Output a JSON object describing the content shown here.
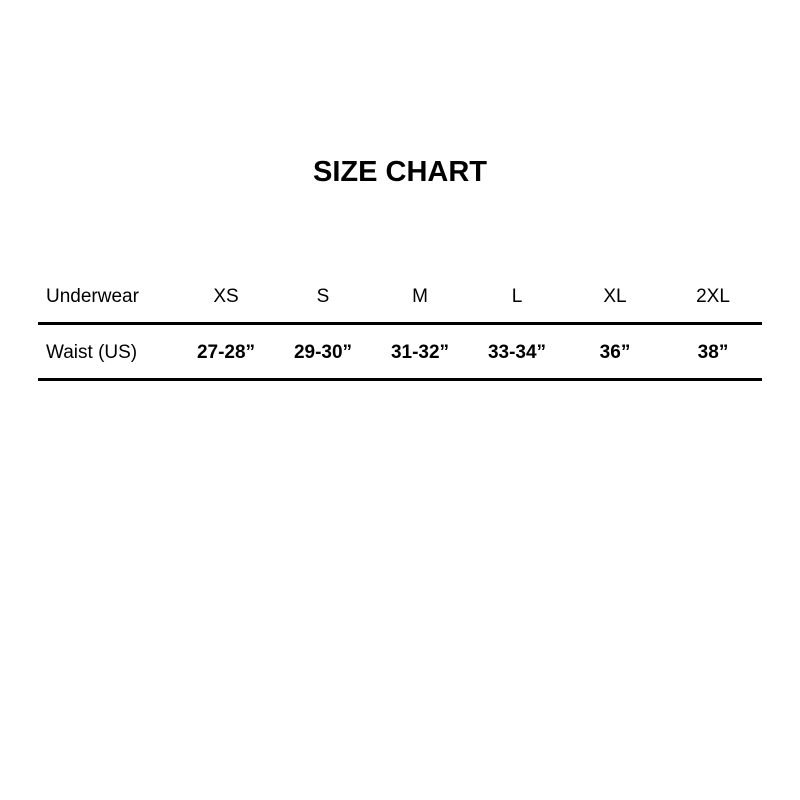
{
  "title": "SIZE CHART",
  "table": {
    "header": {
      "label": "Underwear",
      "sizes": [
        "XS",
        "S",
        "M",
        "L",
        "XL",
        "2XL"
      ]
    },
    "rows": [
      {
        "label": "Waist (US)",
        "values": [
          "27-28”",
          "29-30”",
          "31-32”",
          "33-34”",
          "36”",
          "38”"
        ]
      }
    ]
  }
}
